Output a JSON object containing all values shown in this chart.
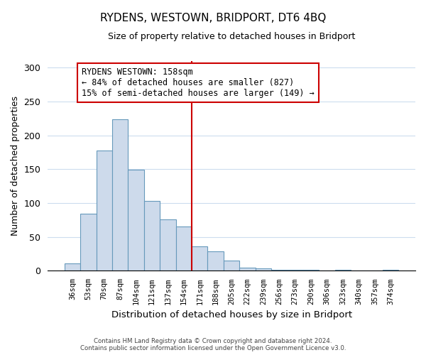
{
  "title": "RYDENS, WESTOWN, BRIDPORT, DT6 4BQ",
  "subtitle": "Size of property relative to detached houses in Bridport",
  "xlabel": "Distribution of detached houses by size in Bridport",
  "ylabel": "Number of detached properties",
  "bar_labels": [
    "36sqm",
    "53sqm",
    "70sqm",
    "87sqm",
    "104sqm",
    "121sqm",
    "137sqm",
    "154sqm",
    "171sqm",
    "188sqm",
    "205sqm",
    "222sqm",
    "239sqm",
    "256sqm",
    "273sqm",
    "290sqm",
    "306sqm",
    "323sqm",
    "340sqm",
    "357sqm",
    "374sqm"
  ],
  "bar_values": [
    11,
    84,
    178,
    224,
    149,
    103,
    76,
    65,
    36,
    29,
    15,
    5,
    4,
    2,
    1,
    1,
    0,
    1,
    0,
    0,
    1
  ],
  "bar_color": "#cddaeb",
  "bar_edge_color": "#6699bb",
  "vline_x_index": 7,
  "vline_color": "#cc0000",
  "annotation_title": "RYDENS WESTOWN: 158sqm",
  "annotation_line1": "← 84% of detached houses are smaller (827)",
  "annotation_line2": "15% of semi-detached houses are larger (149) →",
  "annotation_box_color": "#ffffff",
  "annotation_box_edge": "#cc0000",
  "ylim": [
    0,
    310
  ],
  "yticks": [
    0,
    50,
    100,
    150,
    200,
    250,
    300
  ],
  "footer1": "Contains HM Land Registry data © Crown copyright and database right 2024.",
  "footer2": "Contains public sector information licensed under the Open Government Licence v3.0.",
  "background_color": "#ffffff",
  "grid_color": "#ccddee"
}
